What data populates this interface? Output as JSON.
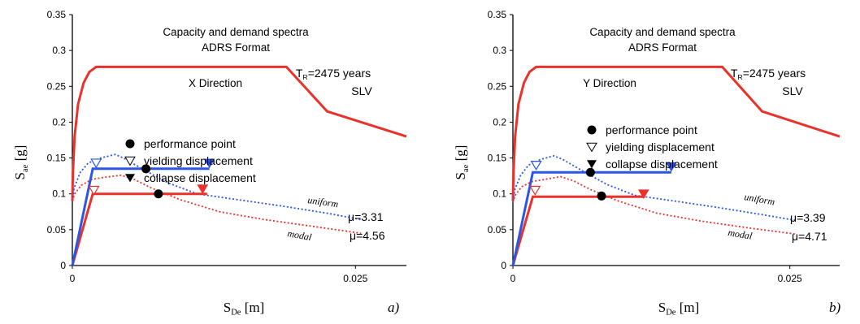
{
  "chart_data": [
    {
      "type": "line",
      "panel_label": "a)",
      "title_line1": "Capacity and demand spectra",
      "title_line2": "ADRS Format",
      "direction_label": "X Direction",
      "return_period": {
        "t": "T",
        "sub": "R",
        "rest": "=2475 years"
      },
      "limit_state": "SLV",
      "ylabel": {
        "main": "S",
        "sub": "ae",
        "unit": " [g]"
      },
      "xlabel": {
        "main": "S",
        "sub": "De",
        "unit": " [m]"
      },
      "xlim": [
        0,
        0.0295
      ],
      "ylim": [
        0,
        0.35
      ],
      "yticks": [
        "0",
        "0.05",
        "0.1",
        "0.15",
        "0.2",
        "0.25",
        "0.3",
        "0.35"
      ],
      "xticks": [
        {
          "v": 0,
          "label": "0"
        },
        {
          "v": 0.025,
          "label": "0.025"
        }
      ],
      "legend": [
        "performance point",
        "yielding displacement",
        "collapse displacement"
      ],
      "legend_pos": "right-middle",
      "mu_uniform": "μ=3.31",
      "mu_modal": "μ=4.56",
      "uniform_label": "uniform",
      "modal_label": "modal",
      "colors": {
        "red": "#e8322b",
        "blue": "#2a55e6",
        "dot_blue": "#3b5bdb",
        "dot_red": "#e8322b"
      },
      "series": {
        "demand": [
          [
            0,
            0.09
          ],
          [
            5e-05,
            0.13
          ],
          [
            0.0002,
            0.18
          ],
          [
            0.0005,
            0.225
          ],
          [
            0.001,
            0.255
          ],
          [
            0.0015,
            0.27
          ],
          [
            0.0021,
            0.277
          ],
          [
            0.0189,
            0.277
          ],
          [
            0.0225,
            0.215
          ],
          [
            0.0295,
            0.18
          ]
        ],
        "capacity_uniform": [
          [
            0,
            0
          ],
          [
            0.0018,
            0.135
          ],
          [
            0.0121,
            0.135
          ]
        ],
        "capacity_modal": [
          [
            0,
            0
          ],
          [
            0.0018,
            0.1
          ],
          [
            0.0119,
            0.1
          ]
        ],
        "demand_uniform": [
          [
            0,
            0.095
          ],
          [
            0.0002,
            0.11
          ],
          [
            0.0007,
            0.13
          ],
          [
            0.0014,
            0.143
          ],
          [
            0.0025,
            0.15
          ],
          [
            0.0038,
            0.155
          ],
          [
            0.0045,
            0.15
          ],
          [
            0.0065,
            0.132
          ],
          [
            0.0085,
            0.115
          ],
          [
            0.011,
            0.1
          ],
          [
            0.015,
            0.091
          ],
          [
            0.0185,
            0.083
          ],
          [
            0.0225,
            0.073
          ],
          [
            0.0255,
            0.064
          ]
        ],
        "demand_modal": [
          [
            0,
            0.09
          ],
          [
            0.0002,
            0.1
          ],
          [
            0.0008,
            0.112
          ],
          [
            0.0017,
            0.12
          ],
          [
            0.0028,
            0.123
          ],
          [
            0.0043,
            0.126
          ],
          [
            0.0055,
            0.12
          ],
          [
            0.007,
            0.108
          ],
          [
            0.0095,
            0.092
          ],
          [
            0.013,
            0.075
          ],
          [
            0.017,
            0.064
          ],
          [
            0.0215,
            0.054
          ],
          [
            0.0255,
            0.045
          ]
        ]
      },
      "yield_uniform": [
        0.0021,
        0.143
      ],
      "yield_modal": [
        0.0019,
        0.105
      ],
      "collapse_uniform": [
        0.0121,
        0.143
      ],
      "collapse_modal": [
        0.0115,
        0.107
      ],
      "perf_uniform": [
        0.0065,
        0.135
      ],
      "perf_modal": [
        0.0076,
        0.1
      ]
    },
    {
      "type": "line",
      "panel_label": "b)",
      "title_line1": "Capacity and demand spectra",
      "title_line2": "ADRS Format",
      "direction_label": "Y Direction",
      "return_period": {
        "t": "T",
        "sub": "R",
        "rest": "=2475 years"
      },
      "limit_state": "SLV",
      "ylabel": {
        "main": "S",
        "sub": "ae",
        "unit": " [g]"
      },
      "xlabel": {
        "main": "S",
        "sub": "De",
        "unit": " [m]"
      },
      "xlim": [
        0,
        0.0295
      ],
      "ylim": [
        0,
        0.35
      ],
      "yticks": [
        "0",
        "0.05",
        "0.1",
        "0.15",
        "0.2",
        "0.25",
        "0.3",
        "0.35"
      ],
      "xticks": [
        {
          "v": 0,
          "label": "0"
        },
        {
          "v": 0.025,
          "label": "0.025"
        }
      ],
      "legend": [
        "performance point",
        "yielding displacement",
        "collapse displacement"
      ],
      "legend_pos": "center",
      "mu_uniform": "μ=3.39",
      "mu_modal": "μ=4.71",
      "uniform_label": "uniform",
      "modal_label": "modal",
      "colors": {
        "red": "#e8322b",
        "blue": "#2a55e6",
        "dot_blue": "#3b5bdb",
        "dot_red": "#e8322b"
      },
      "series": {
        "demand": [
          [
            0,
            0.09
          ],
          [
            5e-05,
            0.13
          ],
          [
            0.0002,
            0.18
          ],
          [
            0.0005,
            0.225
          ],
          [
            0.001,
            0.255
          ],
          [
            0.0015,
            0.27
          ],
          [
            0.0021,
            0.277
          ],
          [
            0.0189,
            0.277
          ],
          [
            0.0225,
            0.215
          ],
          [
            0.0295,
            0.18
          ]
        ],
        "capacity_uniform": [
          [
            0,
            0
          ],
          [
            0.0018,
            0.13
          ],
          [
            0.0143,
            0.13
          ]
        ],
        "capacity_modal": [
          [
            0,
            0
          ],
          [
            0.0018,
            0.096
          ],
          [
            0.0119,
            0.096
          ]
        ],
        "demand_uniform": [
          [
            0,
            0.09
          ],
          [
            0.0002,
            0.107
          ],
          [
            0.0007,
            0.126
          ],
          [
            0.0014,
            0.14
          ],
          [
            0.0025,
            0.148
          ],
          [
            0.0037,
            0.153
          ],
          [
            0.0045,
            0.148
          ],
          [
            0.0065,
            0.13
          ],
          [
            0.0085,
            0.113
          ],
          [
            0.011,
            0.098
          ],
          [
            0.015,
            0.089
          ],
          [
            0.0185,
            0.081
          ],
          [
            0.0225,
            0.071
          ],
          [
            0.0255,
            0.063
          ]
        ],
        "demand_modal": [
          [
            0,
            0.088
          ],
          [
            0.0002,
            0.098
          ],
          [
            0.0008,
            0.11
          ],
          [
            0.0017,
            0.117
          ],
          [
            0.0028,
            0.12
          ],
          [
            0.0043,
            0.124
          ],
          [
            0.0055,
            0.118
          ],
          [
            0.007,
            0.106
          ],
          [
            0.0095,
            0.09
          ],
          [
            0.013,
            0.073
          ],
          [
            0.017,
            0.062
          ],
          [
            0.0215,
            0.052
          ],
          [
            0.0255,
            0.044
          ]
        ]
      },
      "yield_uniform": [
        0.0021,
        0.14
      ],
      "yield_modal": [
        0.002,
        0.105
      ],
      "collapse_uniform": [
        0.0143,
        0.138
      ],
      "collapse_modal": [
        0.0118,
        0.1
      ],
      "perf_uniform": [
        0.007,
        0.13
      ],
      "perf_modal": [
        0.008,
        0.097
      ]
    }
  ]
}
